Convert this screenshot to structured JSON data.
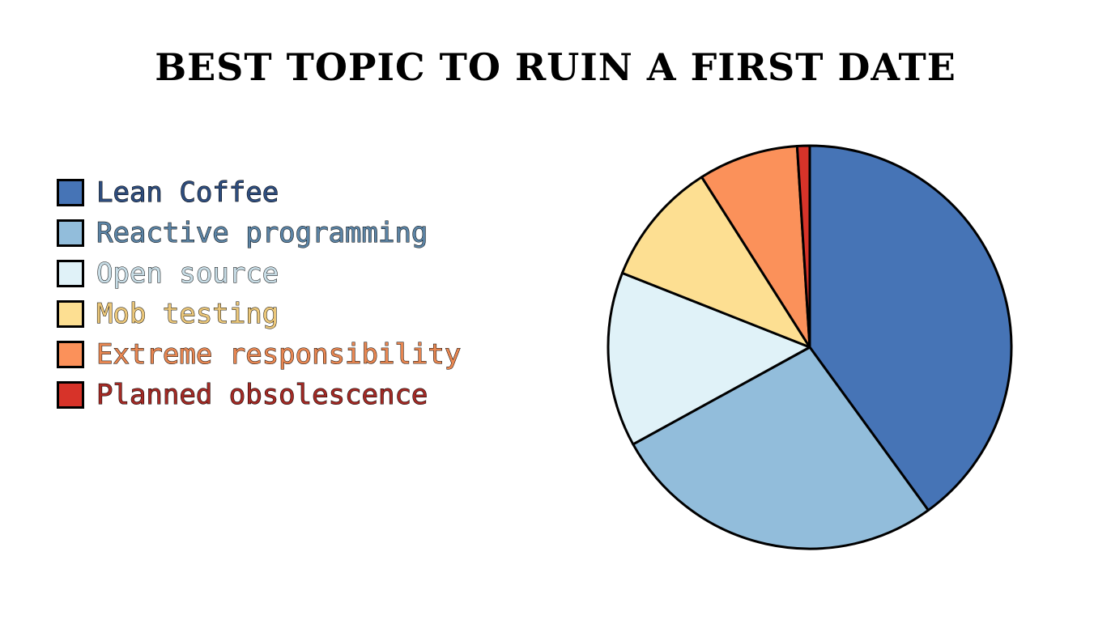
{
  "chart_data": {
    "type": "pie",
    "title": "BEST TOPIC TO RUIN A FIRST DATE",
    "legend_position": "left",
    "start_angle_deg": 0,
    "direction": "clockwise",
    "slices": [
      {
        "label": "Lean Coffee",
        "value": 40.0,
        "color": "#4674b6",
        "text_color": "#2e4d7e"
      },
      {
        "label": "Reactive programming",
        "value": 27.0,
        "color": "#92bddb",
        "text_color": "#5c84a5"
      },
      {
        "label": "Open source",
        "value": 14.0,
        "color": "#e0f2f8",
        "text_color": "#c8dde6"
      },
      {
        "label": "Mob testing",
        "value": 10.0,
        "color": "#fddf92",
        "text_color": "#ebc77a"
      },
      {
        "label": "Extreme responsibility",
        "value": 8.0,
        "color": "#fb915a",
        "text_color": "#e88752"
      },
      {
        "label": "Planned obsolescence",
        "value": 1.0,
        "color": "#d73329",
        "text_color": "#a32a25"
      }
    ]
  }
}
